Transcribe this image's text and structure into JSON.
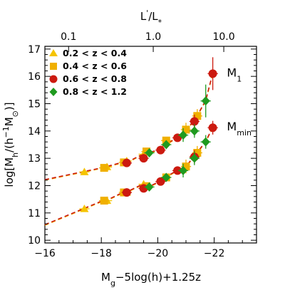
{
  "chart_data": {
    "type": "scatter",
    "title": "",
    "xlabel_parts": {
      "main": "M",
      "sub": "g",
      "rest": "−5log(h)+1.25z"
    },
    "ylabel_parts": {
      "pre": "log[M",
      "sub1": "h",
      "mid": "/(h",
      "sup": "−1",
      "m": "M",
      "sub2": "⊙",
      "post": ")]"
    },
    "top_xlabel_parts": {
      "main": "L",
      "sup": "'",
      "slash": "/L",
      "sub": "*"
    },
    "xlim": [
      -16,
      -23.5
    ],
    "ylim": [
      9.9,
      17.1
    ],
    "x_ticks": [
      -16,
      -18,
      -20,
      -22
    ],
    "x_tick_labels": [
      "−16",
      "−18",
      "−20",
      "−22"
    ],
    "y_ticks": [
      10,
      11,
      12,
      13,
      14,
      15,
      16,
      17
    ],
    "y_tick_labels": [
      "10",
      "11",
      "12",
      "13",
      "14",
      "15",
      "16",
      "17"
    ],
    "top_ticks": [
      0.1,
      1.0,
      10.0
    ],
    "top_tick_labels": [
      "0.1",
      "1.0",
      "10.0"
    ],
    "top_tick_x_positions": [
      -16.84,
      -19.84,
      -22.34
    ],
    "annotations": [
      {
        "main": "M",
        "sub": "1",
        "x": -22.45,
        "y": 16.15
      },
      {
        "main": "M",
        "sub": "min",
        "x": -22.45,
        "y": 14.18
      }
    ],
    "series": [
      {
        "name": "0.2 < z < 0.4",
        "marker": "triangle",
        "color": "#f5c400",
        "m1": [
          [
            -17.4,
            12.5
          ],
          [
            -18.2,
            12.68
          ],
          [
            -18.9,
            12.9
          ],
          [
            -19.5,
            13.15
          ]
        ],
        "mmin": [
          [
            -17.4,
            11.15
          ],
          [
            -18.2,
            11.45
          ],
          [
            -18.9,
            11.75
          ],
          [
            -19.5,
            12.05
          ]
        ]
      },
      {
        "name": "0.4 < z < 0.6",
        "marker": "square",
        "color": "#f0b000",
        "m1": [
          [
            -18.1,
            12.65
          ],
          [
            -18.8,
            12.85
          ],
          [
            -19.6,
            13.25
          ],
          [
            -20.3,
            13.65
          ],
          [
            -21.0,
            14.05
          ],
          [
            -21.4,
            14.55
          ]
        ],
        "mmin": [
          [
            -18.1,
            11.45
          ],
          [
            -18.8,
            11.75
          ],
          [
            -19.6,
            11.98
          ],
          [
            -20.3,
            12.3
          ],
          [
            -21.0,
            12.7
          ],
          [
            -21.4,
            13.2
          ]
        ]
      },
      {
        "name": "0.6 < z < 0.8",
        "marker": "circle",
        "color": "#cc1a10",
        "m1": [
          [
            -18.9,
            12.83
          ],
          [
            -19.5,
            13.0
          ],
          [
            -20.1,
            13.3
          ],
          [
            -20.7,
            13.75
          ],
          [
            -21.3,
            14.35
          ],
          [
            -21.95,
            16.1
          ]
        ],
        "mmin": [
          [
            -18.9,
            11.75
          ],
          [
            -19.5,
            11.9
          ],
          [
            -20.1,
            12.15
          ],
          [
            -20.7,
            12.55
          ],
          [
            -21.3,
            13.05
          ],
          [
            -21.95,
            14.12
          ]
        ]
      },
      {
        "name": "0.8 < z < 1.2",
        "marker": "diamond",
        "color": "#1f9a1f",
        "m1": [
          [
            -19.7,
            13.2
          ],
          [
            -20.3,
            13.5
          ],
          [
            -20.9,
            13.85
          ],
          [
            -21.3,
            14.0
          ],
          [
            -21.7,
            15.1
          ]
        ],
        "mmin": [
          [
            -19.7,
            11.95
          ],
          [
            -20.3,
            12.3
          ],
          [
            -20.9,
            12.55
          ],
          [
            -21.3,
            13.0
          ],
          [
            -21.7,
            13.6
          ]
        ]
      }
    ]
  }
}
